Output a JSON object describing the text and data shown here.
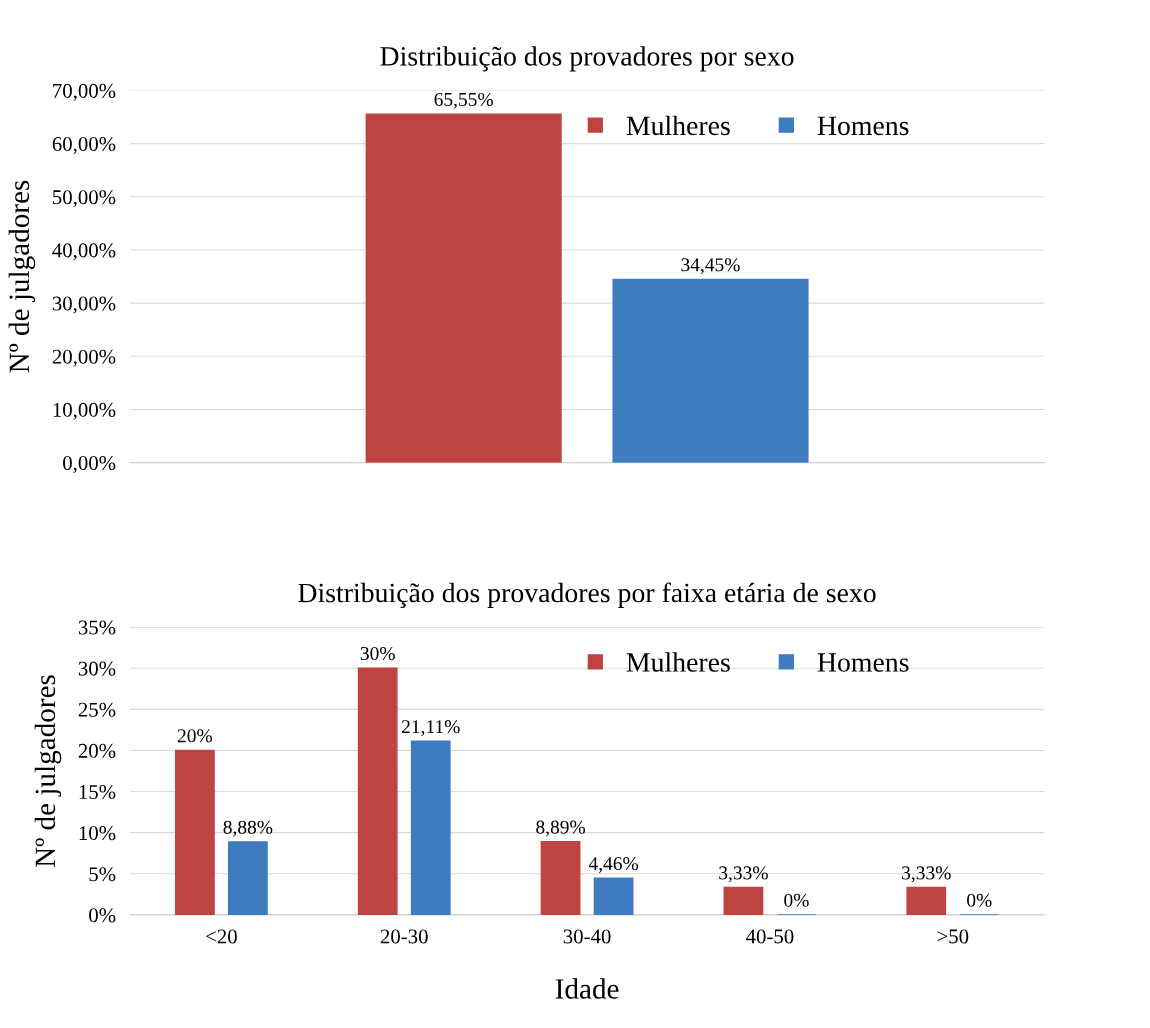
{
  "chart_data": [
    {
      "type": "bar",
      "title": "Distribuição dos provadores por sexo",
      "ylabel": "Nº de julgadores",
      "categories": [
        null
      ],
      "series": [
        {
          "name": "Mulheres",
          "color": "#be4442",
          "values": [
            65.55
          ],
          "value_labels": [
            "65,55%"
          ]
        },
        {
          "name": "Homens",
          "color": "#3f7bbf",
          "values": [
            34.45
          ],
          "value_labels": [
            "34,45%"
          ]
        }
      ],
      "ylim": [
        0,
        70
      ],
      "yticks": [
        {
          "value": 0,
          "label": "0,00%"
        },
        {
          "value": 10,
          "label": "10,00%"
        },
        {
          "value": 20,
          "label": "20,00%"
        },
        {
          "value": 30,
          "label": "30,00%"
        },
        {
          "value": 40,
          "label": "40,00%"
        },
        {
          "value": 50,
          "label": "50,00%"
        },
        {
          "value": 60,
          "label": "60,00%"
        },
        {
          "value": 70,
          "label": "70,00%"
        }
      ],
      "grid": "y",
      "legend": "top right"
    },
    {
      "type": "bar",
      "title": "Distribuição dos provadores por faixa etária de sexo",
      "ylabel": "Nº de julgadores",
      "xlabel": "Idade",
      "categories": [
        "<20",
        "20-30",
        "30-40",
        "40-50",
        ">50"
      ],
      "series": [
        {
          "name": "Mulheres",
          "color": "#be4442",
          "values": [
            20,
            30,
            8.89,
            3.33,
            3.33
          ],
          "value_labels": [
            "20%",
            "30%",
            "8,89%",
            "3,33%",
            "3,33%"
          ]
        },
        {
          "name": "Homens",
          "color": "#3f7bbf",
          "values": [
            8.88,
            21.11,
            4.46,
            0,
            0
          ],
          "value_labels": [
            "8,88%",
            "21,11%",
            "4,46%",
            "0%",
            "0%"
          ]
        }
      ],
      "ylim": [
        0,
        35
      ],
      "yticks": [
        {
          "value": 0,
          "label": "0%"
        },
        {
          "value": 5,
          "label": "5%"
        },
        {
          "value": 10,
          "label": "10%"
        },
        {
          "value": 15,
          "label": "15%"
        },
        {
          "value": 20,
          "label": "20%"
        },
        {
          "value": 25,
          "label": "25%"
        },
        {
          "value": 30,
          "label": "30%"
        },
        {
          "value": 35,
          "label": "35%"
        }
      ],
      "grid": "y",
      "legend": "top right"
    }
  ]
}
